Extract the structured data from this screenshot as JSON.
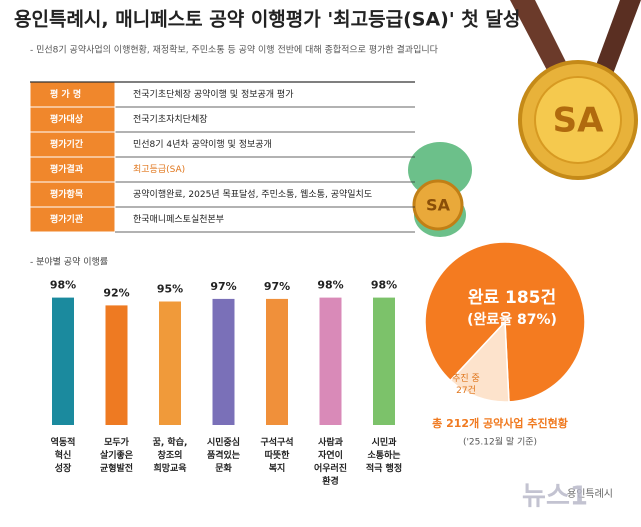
{
  "header": {
    "title": "용인특례시, 매니페스토 공약 이행평가 '최고등급(SA)' 첫 달성",
    "subtitle": "- 민선8기 공약사업의 이행현황, 재정확보, 주민소통 등 공약 이행 전반에 대해 종합적으로 평가한 결과입니다"
  },
  "table": {
    "rows": [
      [
        "평 가 명",
        "전국기초단체장 공약이행 및 정보공개 평가"
      ],
      [
        "평가대상",
        "전국기초자치단체장"
      ],
      [
        "평가기간",
        "민선8기 4년차 공약이행 및 정보공개"
      ],
      [
        "평가결과",
        "최고등급(SA)"
      ],
      [
        "평가항목",
        "공약이행완료, 2025년 목표달성, 주민소통, 웹소통, 공약일치도"
      ],
      [
        "평가기관",
        "한국매니페스토실천본부"
      ]
    ]
  },
  "medal": "SA",
  "dragon_coin": "SA",
  "chart_data": [
    {
      "type": "bar",
      "title": "- 분야별 공약 이행률",
      "categories": [
        "역동적\n혁신\n성장",
        "모두가\n살기좋은\n균형발전",
        "꿈, 학습,\n창조의\n희망교육",
        "시민중심\n품격있는\n문화",
        "구석구석\n따뜻한\n복지",
        "사람과\n자연이\n어우러진\n환경",
        "시민과\n소통하는\n적극 행정"
      ],
      "values": [
        98,
        92,
        95,
        97,
        97,
        98,
        98
      ],
      "value_labels": [
        "98%",
        "92%",
        "95%",
        "97%",
        "97%",
        "98%",
        "98%"
      ],
      "colors": [
        "#1b8a9e",
        "#ee7a22",
        "#f09a3a",
        "#7a70b8",
        "#f0903a",
        "#d98ab8",
        "#7cc26a"
      ]
    },
    {
      "type": "pie",
      "values": [
        185,
        27
      ],
      "value_labels": [
        "완료 185건",
        "추진 중\n27건"
      ],
      "annotation": "(완료율 87%)",
      "title": "총 212개 공약사업 추진현황",
      "subtitle": "('25.12월 말 기준)",
      "colors": [
        "#f47b20",
        "#fde3cc"
      ]
    }
  ],
  "footer": {
    "watermark": "용인특례시",
    "logo": "뉴스1"
  }
}
